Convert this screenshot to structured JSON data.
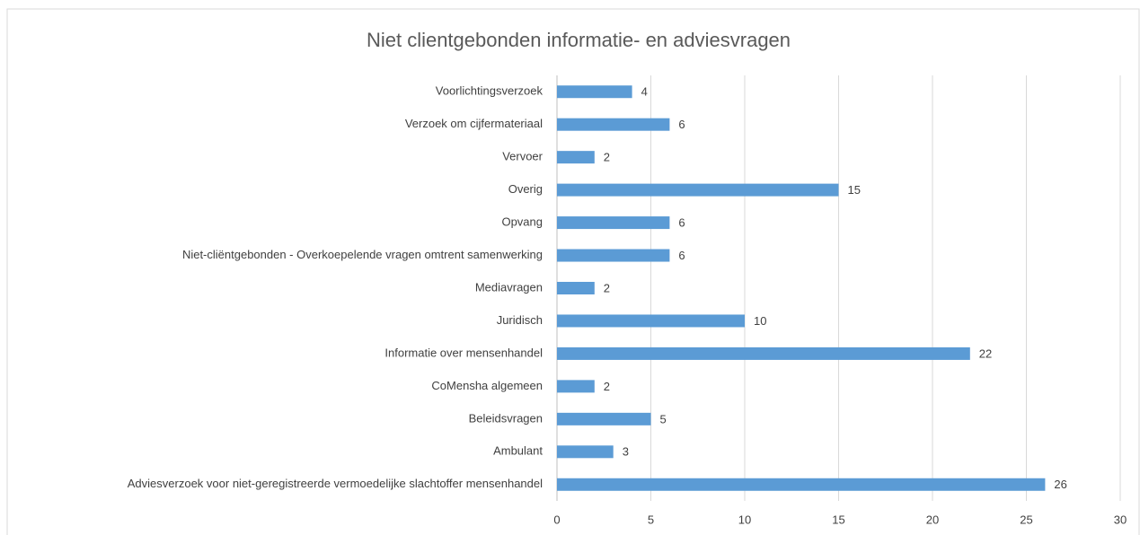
{
  "chart_data": {
    "type": "bar",
    "orientation": "horizontal",
    "title": "Niet clientgebonden informatie- en adviesvragen",
    "categories": [
      "Voorlichtingsverzoek",
      "Verzoek om cijfermateriaal",
      "Vervoer",
      "Overig",
      "Opvang",
      "Niet-cliëntgebonden -  Overkoepelende vragen omtrent samenwerking",
      "Mediavragen",
      "Juridisch",
      "Informatie over mensenhandel",
      "CoMensha algemeen",
      "Beleidsvragen",
      "Ambulant",
      "Adviesverzoek voor niet-geregistreerde vermoedelijke slachtoffer mensenhandel"
    ],
    "values": [
      4,
      6,
      2,
      15,
      6,
      6,
      2,
      10,
      22,
      2,
      5,
      3,
      26
    ],
    "color": "#5b9bd5",
    "xlim": [
      0,
      30
    ],
    "xticks": [
      0,
      5,
      10,
      15,
      20,
      25,
      30
    ],
    "grid": true
  }
}
